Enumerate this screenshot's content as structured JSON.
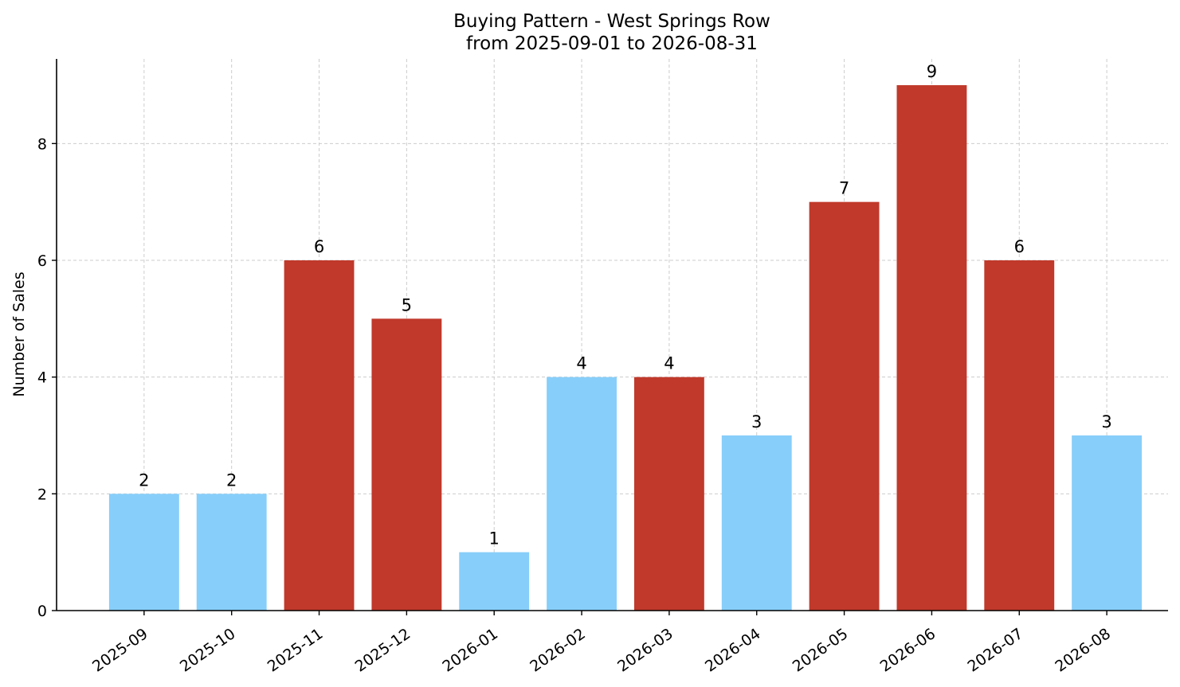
{
  "chart_data": {
    "type": "bar",
    "title": "Buying Pattern - West Springs Row",
    "subtitle": "from 2025-09-01 to 2026-08-31",
    "xlabel": "",
    "ylabel": "Number of Sales",
    "categories": [
      "2025-09",
      "2025-10",
      "2025-11",
      "2025-12",
      "2026-01",
      "2026-02",
      "2026-03",
      "2026-04",
      "2026-05",
      "2026-06",
      "2026-07",
      "2026-08"
    ],
    "values": [
      2,
      2,
      6,
      5,
      1,
      4,
      4,
      3,
      7,
      9,
      6,
      3
    ],
    "bar_colors": [
      "#87CEFA",
      "#87CEFA",
      "#C0392B",
      "#C0392B",
      "#87CEFA",
      "#87CEFA",
      "#C0392B",
      "#87CEFA",
      "#C0392B",
      "#C0392B",
      "#C0392B",
      "#87CEFA"
    ],
    "ylim": [
      0,
      9.45
    ],
    "yticks": [
      0,
      2,
      4,
      6,
      8
    ],
    "grid": true,
    "legend": "none"
  }
}
